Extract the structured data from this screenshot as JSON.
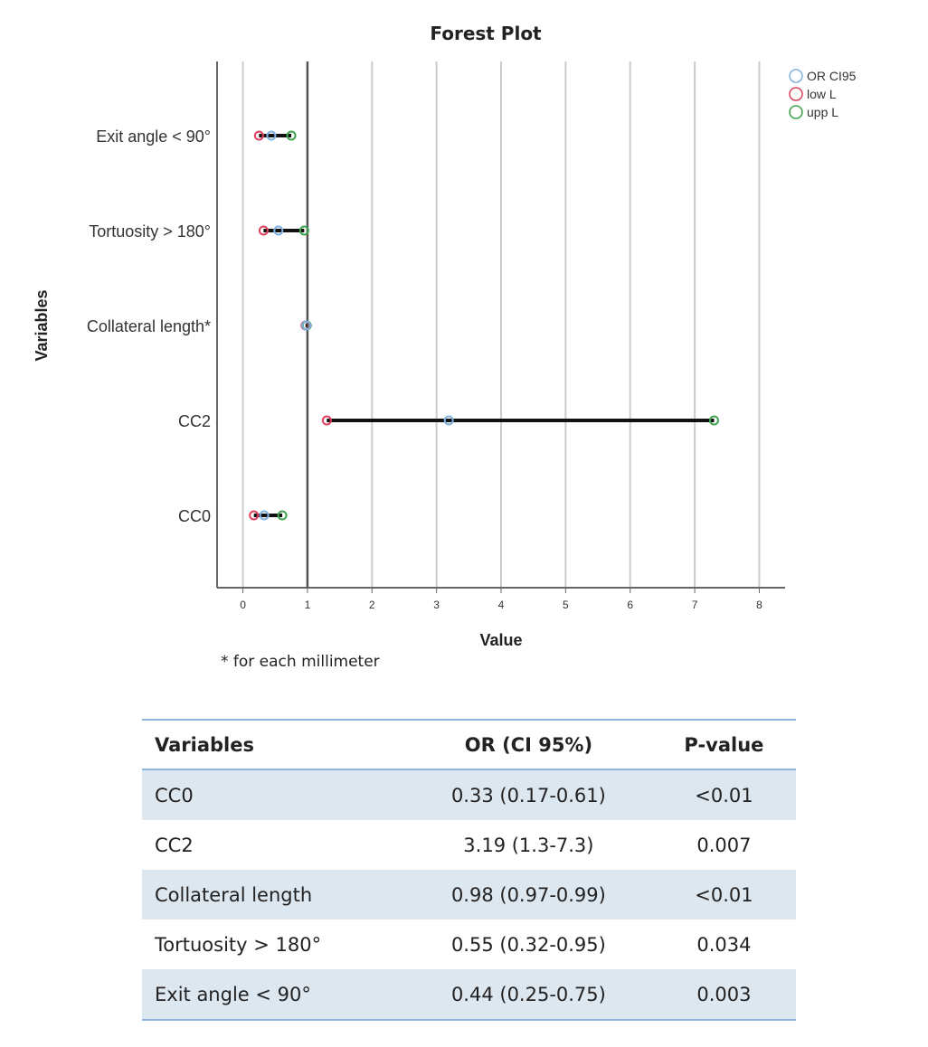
{
  "chart_data": {
    "type": "scatter",
    "title": "Forest Plot",
    "xlabel": "Value",
    "ylabel": "Variables",
    "xlim": [
      -0.4,
      8.4
    ],
    "xticks": [
      0,
      1,
      2,
      3,
      4,
      5,
      6,
      7,
      8
    ],
    "reference_line": 1,
    "grid": "vertical",
    "legend_position": "top-right",
    "categories": [
      "Exit angle < 90°",
      "Tortuosity > 180°",
      "Collateral length*",
      "CC2",
      "CC0"
    ],
    "series": [
      {
        "name": "OR CI95",
        "color": "#7fb0df",
        "values": [
          0.44,
          0.55,
          0.98,
          3.19,
          0.33
        ]
      },
      {
        "name": "low L",
        "color": "#e0405e",
        "values": [
          0.25,
          0.32,
          0.97,
          1.3,
          0.17
        ]
      },
      {
        "name": "upp L",
        "color": "#3fa34d",
        "values": [
          0.75,
          0.95,
          0.99,
          7.3,
          0.61
        ]
      }
    ]
  },
  "footnote": "* for each millimeter",
  "table": {
    "headers": [
      "Variables",
      "OR (CI 95%)",
      "P-value"
    ],
    "rows": [
      [
        "CC0",
        "0.33 (0.17-0.61)",
        "<0.01"
      ],
      [
        "CC2",
        "3.19 (1.3-7.3)",
        "0.007"
      ],
      [
        "Collateral length",
        "0.98 (0.97-0.99)",
        "<0.01"
      ],
      [
        "Tortuosity > 180°",
        "0.55 (0.32-0.95)",
        "0.034"
      ],
      [
        "Exit angle < 90°",
        "0.44 (0.25-0.75)",
        "0.003"
      ]
    ]
  }
}
